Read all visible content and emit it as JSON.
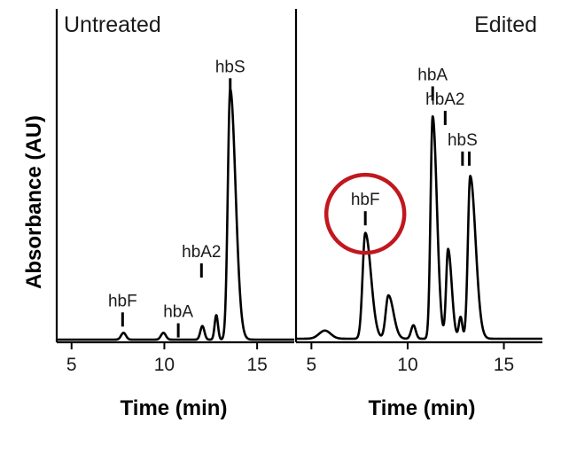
{
  "chart_data": {
    "type": "line",
    "ylabel": "Absorbance (AU)",
    "panels": [
      {
        "title": "Untreated",
        "xlabel": "Time (min)",
        "xlim": [
          4.2,
          17
        ],
        "ylim": [
          0,
          1
        ],
        "xticks": [
          5,
          10,
          15
        ],
        "peaks": [
          {
            "label": "hbF",
            "x": 7.8,
            "height": 0.025
          },
          {
            "label": "hbA",
            "x": 9.95,
            "height": 0.025
          },
          {
            "label": "hbA2",
            "x": 12.05,
            "height": 0.05
          },
          {
            "label": "",
            "x": 12.8,
            "height": 0.09
          },
          {
            "label": "hbS",
            "x": 13.55,
            "height": 0.92
          }
        ],
        "markers": [
          {
            "label": "hbF",
            "x": 7.75,
            "y_top": 0.1
          },
          {
            "label": "hbA",
            "x": 10.75,
            "y_top": 0.06
          },
          {
            "label": "hbA2",
            "x": 12.0,
            "y_top": 0.28
          },
          {
            "label": "hbS",
            "x": 13.55,
            "y_top": 0.96
          }
        ]
      },
      {
        "title": "Edited",
        "xlabel": "Time (min)",
        "xlim": [
          4.2,
          17
        ],
        "ylim": [
          0,
          1
        ],
        "xticks": [
          5,
          10,
          15
        ],
        "peaks": [
          {
            "label": "",
            "x": 5.7,
            "height": 0.03
          },
          {
            "label": "hbF",
            "x": 7.8,
            "height": 0.39
          },
          {
            "label": "",
            "x": 9.0,
            "height": 0.16
          },
          {
            "label": "",
            "x": 10.3,
            "height": 0.05
          },
          {
            "label": "hbA",
            "x": 11.3,
            "height": 0.82
          },
          {
            "label": "hbA2",
            "x": 12.1,
            "height": 0.33
          },
          {
            "label": "",
            "x": 12.75,
            "height": 0.08
          },
          {
            "label": "hbS",
            "x": 13.25,
            "height": 0.6
          }
        ],
        "markers": [
          {
            "label": "hbF",
            "x": 7.8,
            "y_top": 0.47
          },
          {
            "label": "hbA",
            "x": 11.3,
            "y_top": 0.93
          },
          {
            "label": "hbA2",
            "x": 11.95,
            "y_top": 0.84
          },
          {
            "label": "hbS",
            "x": 12.85,
            "y_top": 0.69
          },
          {
            "label": "",
            "x": 13.2,
            "y_top": 0.69
          }
        ],
        "highlight": {
          "target": "hbF",
          "color": "#c0181e"
        }
      }
    ]
  }
}
